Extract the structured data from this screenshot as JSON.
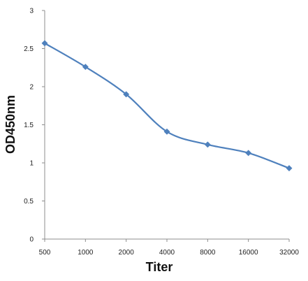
{
  "chart_data": {
    "type": "line",
    "title": "",
    "xlabel": "Titer",
    "ylabel": "OD450nm",
    "categories": [
      "500",
      "1000",
      "2000",
      "4000",
      "8000",
      "16000",
      "32000"
    ],
    "series": [
      {
        "values": [
          2.57,
          2.26,
          1.9,
          1.41,
          1.24,
          1.13,
          0.93
        ],
        "color": "#4f81bd"
      }
    ],
    "ylim": [
      0,
      3
    ],
    "yticks": [
      "0",
      "0.5",
      "1",
      "1.5",
      "2",
      "2.5",
      "3"
    ],
    "grid": false,
    "legend": "none",
    "marker": "diamond",
    "smooth": true
  }
}
